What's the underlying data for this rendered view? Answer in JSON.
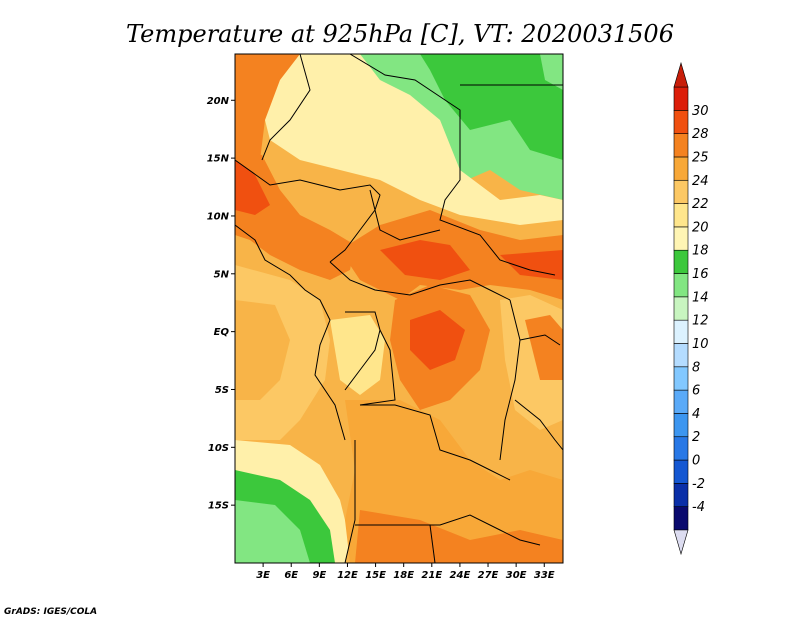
{
  "chart_data": {
    "type": "heatmap",
    "title": "Temperature at 925hPa [C], VT: 2020031506",
    "variable": "Temperature at 925hPa",
    "units": "C",
    "valid_time": "2020031506",
    "x_range": [
      0,
      35
    ],
    "y_range": [
      -20,
      24
    ],
    "x_ticks": [
      {
        "value": 3,
        "label": "3E"
      },
      {
        "value": 6,
        "label": "6E"
      },
      {
        "value": 9,
        "label": "9E"
      },
      {
        "value": 12,
        "label": "12E"
      },
      {
        "value": 15,
        "label": "15E"
      },
      {
        "value": 18,
        "label": "18E"
      },
      {
        "value": 21,
        "label": "21E"
      },
      {
        "value": 24,
        "label": "24E"
      },
      {
        "value": 27,
        "label": "27E"
      },
      {
        "value": 30,
        "label": "30E"
      },
      {
        "value": 33,
        "label": "33E"
      }
    ],
    "y_ticks": [
      {
        "value": 20,
        "label": "20N"
      },
      {
        "value": 15,
        "label": "15N"
      },
      {
        "value": 10,
        "label": "10N"
      },
      {
        "value": 5,
        "label": "5N"
      },
      {
        "value": 0,
        "label": "EQ"
      },
      {
        "value": -5,
        "label": "5S"
      },
      {
        "value": -10,
        "label": "10S"
      },
      {
        "value": -15,
        "label": "15S"
      }
    ],
    "colorbar": {
      "levels": [
        -4,
        -2,
        0,
        2,
        4,
        6,
        8,
        10,
        12,
        14,
        16,
        18,
        20,
        22,
        24,
        25,
        28,
        30
      ],
      "labels": [
        "-4",
        "-2",
        "0",
        "2",
        "4",
        "6",
        "8",
        "10",
        "12",
        "14",
        "16",
        "18",
        "20",
        "22",
        "24",
        "25",
        "28",
        "30"
      ],
      "colors": [
        "#0a0a6e",
        "#0a2fa8",
        "#1457d2",
        "#2878e6",
        "#3c96f0",
        "#5aaaf8",
        "#82c8ff",
        "#b4dcff",
        "#dcf2ff",
        "#c8f5c0",
        "#82e682",
        "#3cc83c",
        "#fff5b4",
        "#ffe68c",
        "#fcc864",
        "#f8a838",
        "#f48220",
        "#f05010",
        "#dc1e0a"
      ],
      "under_color": "#dcdcf0",
      "over_color": "#c81e0a"
    },
    "field_samples": [
      {
        "lon": 4,
        "lat": 22,
        "value": 26
      },
      {
        "lon": 13,
        "lat": 22,
        "value": 17
      },
      {
        "lon": 24,
        "lat": 20,
        "value": 17
      },
      {
        "lon": 30,
        "lat": 18,
        "value": 17
      },
      {
        "lon": 20,
        "lat": 17,
        "value": 21
      },
      {
        "lon": 2,
        "lat": 14,
        "value": 28
      },
      {
        "lon": 7,
        "lat": 10,
        "value": 28
      },
      {
        "lon": 21,
        "lat": 7,
        "value": 28
      },
      {
        "lon": 30,
        "lat": 6,
        "value": 26
      },
      {
        "lon": 3,
        "lat": 0,
        "value": 23
      },
      {
        "lon": 10,
        "lat": -2,
        "value": 24
      },
      {
        "lon": 22,
        "lat": 0,
        "value": 26
      },
      {
        "lon": 31,
        "lat": -2,
        "value": 24
      },
      {
        "lon": 4,
        "lat": -11,
        "value": 21
      },
      {
        "lon": 18,
        "lat": -11,
        "value": 24
      },
      {
        "lon": 27,
        "lat": -13,
        "value": 25
      },
      {
        "lon": 5,
        "lat": -17,
        "value": 17
      },
      {
        "lon": 22,
        "lat": -19,
        "value": 26
      }
    ],
    "grid": false,
    "colorbar_position": "right"
  },
  "footer": {
    "credit": "GrADS: IGES/COLA"
  }
}
